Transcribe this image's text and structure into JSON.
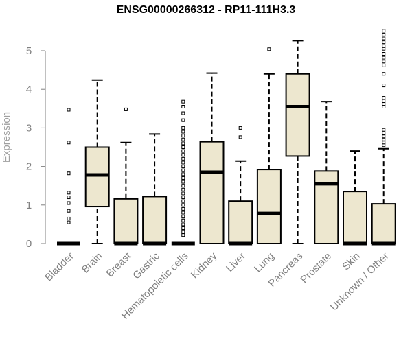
{
  "chart_data": {
    "type": "box",
    "title": "ENSG00000266312 - RP11-111H3.3",
    "xlabel": "",
    "ylabel": "Expression",
    "ylim": [
      0,
      5.5
    ],
    "yticks": [
      0,
      1,
      2,
      3,
      4,
      5
    ],
    "grid": false,
    "box_fill": "#ede7cf",
    "categories": [
      "Bladder",
      "Brain",
      "Breast",
      "Gastric",
      "Hematopoietic cells",
      "Kidney",
      "Liver",
      "Lung",
      "Pancreas",
      "Prostate",
      "Skin",
      "Unknown / Other"
    ],
    "boxes": [
      {
        "label": "Bladder",
        "min": 0,
        "q1": 0,
        "median": 0,
        "q3": 0,
        "max": 0,
        "outliers": [
          0.55,
          0.65,
          0.85,
          1.05,
          1.2,
          1.32,
          1.82,
          2.62,
          3.47
        ]
      },
      {
        "label": "Brain",
        "min": 0,
        "q1": 0.96,
        "median": 1.78,
        "q3": 2.5,
        "max": 4.24,
        "outliers": []
      },
      {
        "label": "Breast",
        "min": 0,
        "q1": 0,
        "median": 0,
        "q3": 1.16,
        "max": 2.62,
        "outliers": [
          3.48
        ]
      },
      {
        "label": "Gastric",
        "min": 0,
        "q1": 0,
        "median": 0,
        "q3": 1.22,
        "max": 2.84,
        "outliers": []
      },
      {
        "label": "Hematopoietic cells",
        "min": 0,
        "q1": 0,
        "median": 0,
        "q3": 0,
        "max": 0,
        "outliers": [
          0.22,
          0.3,
          0.4,
          0.5,
          0.6,
          0.7,
          0.8,
          0.9,
          1.0,
          1.1,
          1.2,
          1.3,
          1.4,
          1.5,
          1.6,
          1.7,
          1.8,
          1.9,
          2.0,
          2.1,
          2.2,
          2.3,
          2.4,
          2.5,
          2.6,
          2.7,
          2.8,
          2.9,
          3.0,
          3.2,
          3.38,
          3.55,
          3.68
        ]
      },
      {
        "label": "Kidney",
        "min": 0,
        "q1": 0,
        "median": 1.85,
        "q3": 2.64,
        "max": 4.42,
        "outliers": []
      },
      {
        "label": "Liver",
        "min": 0,
        "q1": 0,
        "median": 0,
        "q3": 1.1,
        "max": 2.14,
        "outliers": [
          2.76,
          3.0
        ]
      },
      {
        "label": "Lung",
        "min": 0,
        "q1": 0,
        "median": 0.78,
        "q3": 1.92,
        "max": 4.4,
        "outliers": [
          5.04
        ]
      },
      {
        "label": "Pancreas",
        "min": 0,
        "q1": 2.27,
        "median": 3.55,
        "q3": 4.4,
        "max": 5.26,
        "outliers": []
      },
      {
        "label": "Prostate",
        "min": 0,
        "q1": 0,
        "median": 1.55,
        "q3": 1.88,
        "max": 3.68,
        "outliers": []
      },
      {
        "label": "Skin",
        "min": 0,
        "q1": 0,
        "median": 0,
        "q3": 1.35,
        "max": 2.4,
        "outliers": []
      },
      {
        "label": "Unknown / Other",
        "min": 0,
        "q1": 0,
        "median": 0,
        "q3": 1.03,
        "max": 2.46,
        "outliers": [
          2.55,
          2.62,
          2.7,
          2.78,
          2.86,
          2.95,
          3.55,
          3.62,
          3.7,
          3.78,
          4.1,
          4.4,
          4.62,
          4.72,
          4.82,
          4.92,
          5.05,
          5.12,
          5.22,
          5.32,
          5.42,
          5.52
        ]
      }
    ]
  }
}
